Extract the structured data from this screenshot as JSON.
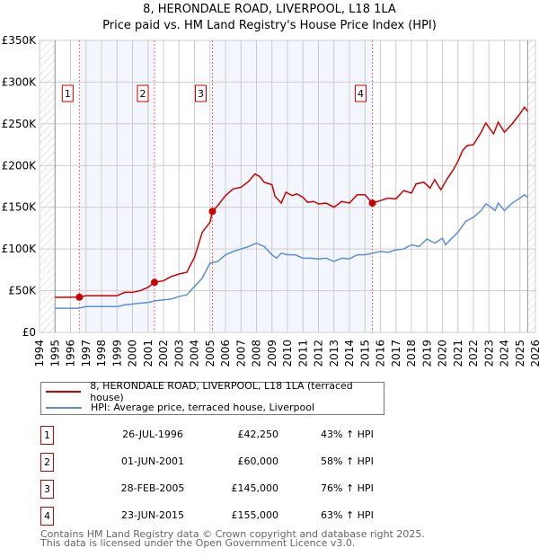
{
  "title": "8, HERONDALE ROAD, LIVERPOOL, L18 1LA",
  "subtitle": "Price paid vs. HM Land Registry's House Price Index (HPI)",
  "chart_data": {
    "type": "line",
    "ylim": [
      0,
      350
    ],
    "xlim": [
      1994,
      2026
    ],
    "yticks": [
      {
        "v": 0,
        "label": "£0"
      },
      {
        "v": 50,
        "label": "£50K"
      },
      {
        "v": 100,
        "label": "£100K"
      },
      {
        "v": 150,
        "label": "£150K"
      },
      {
        "v": 200,
        "label": "£200K"
      },
      {
        "v": 250,
        "label": "£250K"
      },
      {
        "v": 300,
        "label": "£300K"
      },
      {
        "v": 350,
        "label": "£350K"
      }
    ],
    "xticks": [
      "1994",
      "1995",
      "1996",
      "1997",
      "1998",
      "1999",
      "2000",
      "2001",
      "2002",
      "2003",
      "2004",
      "2005",
      "2006",
      "2007",
      "2008",
      "2009",
      "2010",
      "2011",
      "2012",
      "2013",
      "2014",
      "2015",
      "2016",
      "2017",
      "2018",
      "2019",
      "2020",
      "2021",
      "2022",
      "2023",
      "2024",
      "2025",
      "2026"
    ],
    "series": [
      {
        "name": "8, HERONDALE ROAD, LIVERPOOL, L18 1LA (terraced house)",
        "color": "#cc0000",
        "x": [
          1995,
          1996.57,
          1997,
          1998,
          1999,
          1999.5,
          2000,
          2000.5,
          2001,
          2001.42,
          2002,
          2002.5,
          2003,
          2003.5,
          2004,
          2004.5,
          2005,
          2005.16,
          2005.5,
          2006,
          2006.5,
          2007,
          2007.5,
          2007.9,
          2008.2,
          2008.5,
          2009,
          2009.2,
          2009.6,
          2009.9,
          2010.3,
          2010.6,
          2011,
          2011.3,
          2011.7,
          2012,
          2012.5,
          2013,
          2013.5,
          2014,
          2014.5,
          2015,
          2015.48,
          2016,
          2016.5,
          2017,
          2017.5,
          2018,
          2018.3,
          2018.8,
          2019.2,
          2019.5,
          2019.9,
          2020.3,
          2020.7,
          2021,
          2021.3,
          2021.6,
          2022,
          2022.5,
          2022.8,
          2023.3,
          2023.6,
          2024,
          2024.5,
          2025,
          2025.3,
          2025.5
        ],
        "y": [
          42,
          42.25,
          44,
          44,
          44,
          48,
          48,
          50,
          54,
          60,
          62,
          67,
          70,
          72,
          90,
          120,
          132,
          145,
          152,
          164,
          172,
          174,
          181,
          190,
          187,
          180,
          177,
          163,
          155,
          168,
          164,
          166,
          162,
          156,
          157,
          154,
          155,
          150,
          157,
          155,
          165,
          165,
          155,
          158,
          161,
          160,
          170,
          167,
          178,
          180,
          173,
          183,
          171,
          184,
          195,
          205,
          218,
          224,
          225,
          240,
          251,
          238,
          252,
          240,
          250,
          262,
          270,
          265
        ]
      },
      {
        "name": "HPI: Average price, terraced house, Liverpool",
        "color": "#5b8fd6",
        "x": [
          1995,
          1996.5,
          1997,
          1998,
          1999,
          1999.5,
          2000,
          2001,
          2001.5,
          2002,
          2002.5,
          2003,
          2003.5,
          2004,
          2004.5,
          2005,
          2005.5,
          2006,
          2006.5,
          2007,
          2007.5,
          2008,
          2008.5,
          2009,
          2009.3,
          2009.6,
          2010,
          2010.5,
          2011,
          2011.5,
          2012,
          2012.5,
          2013,
          2013.5,
          2014,
          2014.5,
          2015,
          2015.5,
          2016,
          2016.5,
          2017,
          2017.5,
          2018,
          2018.5,
          2019,
          2019.5,
          2020,
          2020.2,
          2020.5,
          2021,
          2021.5,
          2022,
          2022.5,
          2022.8,
          2023,
          2023.4,
          2023.6,
          2024,
          2024.5,
          2025,
          2025.3,
          2025.5
        ],
        "y": [
          29,
          29,
          31,
          31,
          31,
          33,
          34,
          36,
          38,
          39,
          40,
          43,
          45,
          55,
          65,
          83,
          85,
          93,
          97,
          100,
          103,
          107,
          103,
          93,
          89,
          95,
          93,
          93,
          89,
          89,
          88,
          89,
          85,
          89,
          88,
          93,
          93,
          95,
          97,
          96,
          99,
          100,
          105,
          103,
          112,
          107,
          113,
          105,
          111,
          120,
          133,
          138,
          146,
          154,
          152,
          146,
          155,
          146,
          155,
          161,
          165,
          162
        ]
      }
    ],
    "sales": [
      {
        "n": "1",
        "x": 1996.57,
        "price": 42.25,
        "date": "26-JUL-1996",
        "price_label": "£42,250",
        "hpi": "43% ↑ HPI"
      },
      {
        "n": "2",
        "x": 2001.42,
        "price": 60,
        "date": "01-JUN-2001",
        "price_label": "£60,000",
        "hpi": "58% ↑ HPI"
      },
      {
        "n": "3",
        "x": 2005.16,
        "price": 145,
        "date": "28-FEB-2005",
        "price_label": "£145,000",
        "hpi": "76% ↑ HPI"
      },
      {
        "n": "4",
        "x": 2015.48,
        "price": 155,
        "date": "23-JUN-2015",
        "price_label": "£155,000",
        "hpi": "63% ↑ HPI"
      }
    ],
    "shaded": [
      [
        1996.57,
        2001.42
      ],
      [
        2005.16,
        2015.48
      ]
    ],
    "data_range": [
      1995,
      2025.5
    ]
  },
  "legend": {
    "items": [
      "8, HERONDALE ROAD, LIVERPOOL, L18 1LA (terraced house)",
      "HPI: Average price, terraced house, Liverpool"
    ]
  },
  "footer": [
    "Contains HM Land Registry data © Crown copyright and database right 2025.",
    "This data is licensed under the Open Government Licence v3.0."
  ]
}
